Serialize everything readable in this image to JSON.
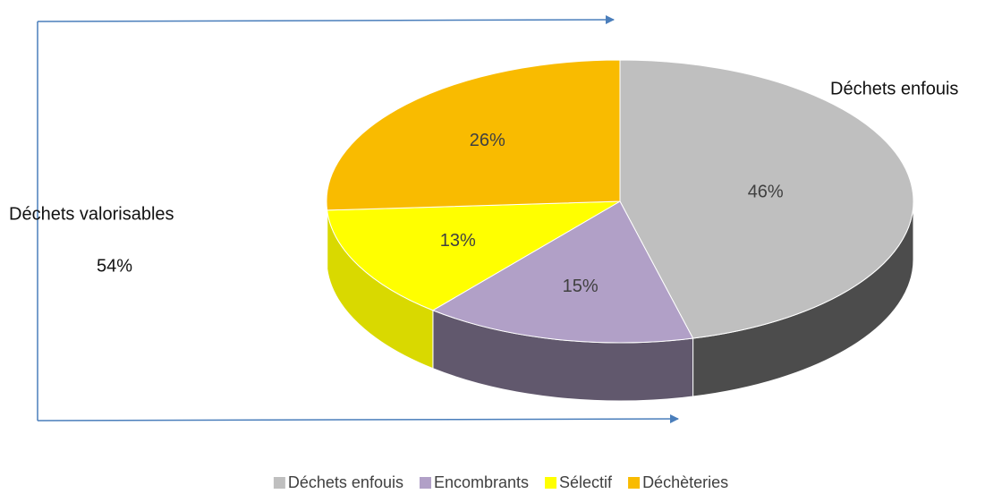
{
  "chart_data": {
    "type": "pie",
    "categories": [
      "Déchets enfouis",
      "Encombrants",
      "Sélectif",
      "Déchèteries"
    ],
    "values": [
      46,
      15,
      13,
      26
    ],
    "value_labels": [
      "46%",
      "15%",
      "13%",
      "26%"
    ],
    "colors": [
      "#bfbfbf",
      "#b1a0c7",
      "#ffff00",
      "#f9bb00"
    ],
    "annotations": [
      "Déchets enfouis",
      "Déchets valorisables",
      "54%"
    ],
    "legend": "bottom"
  }
}
